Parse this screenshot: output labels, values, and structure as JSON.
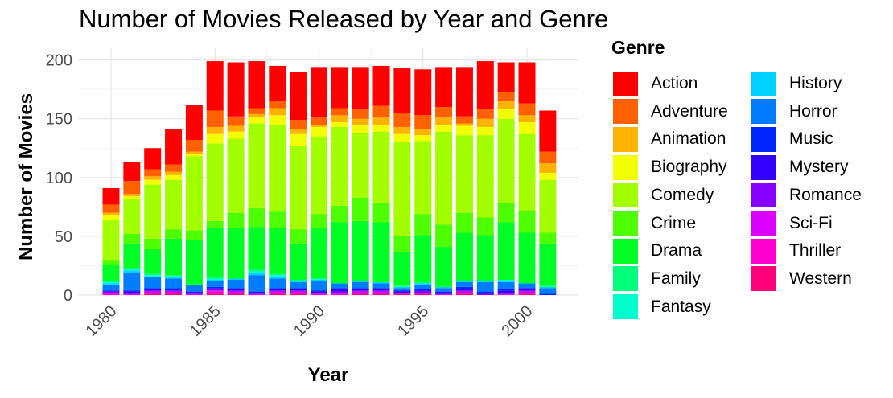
{
  "chart_data": {
    "type": "bar",
    "stacked": true,
    "title": "Number of Movies Released by Year and Genre",
    "xlabel": "Year",
    "ylabel": "Number of Movies",
    "legend_title": "Genre",
    "legend_position": "right",
    "grid": true,
    "ylim": [
      0,
      205
    ],
    "yticks": [
      0,
      50,
      100,
      150,
      200
    ],
    "xticks": [
      1980,
      1985,
      1990,
      1995,
      2000
    ],
    "categories": [
      1980,
      1981,
      1982,
      1983,
      1984,
      1985,
      1986,
      1987,
      1988,
      1989,
      1990,
      1991,
      1992,
      1993,
      1994,
      1995,
      1996,
      1997,
      1998,
      1999,
      2000,
      2001
    ],
    "series": [
      {
        "name": "Action",
        "color": "#FF0000",
        "values": [
          14,
          16,
          18,
          30,
          30,
          42,
          46,
          40,
          30,
          41,
          43,
          35,
          36,
          34,
          38,
          39,
          34,
          42,
          41,
          25,
          35,
          35
        ]
      },
      {
        "name": "Adventure",
        "color": "#FF6100",
        "values": [
          7,
          11,
          6,
          6,
          10,
          14,
          8,
          5,
          6,
          8,
          6,
          6,
          8,
          10,
          12,
          12,
          9,
          6,
          8,
          8,
          10,
          10
        ]
      },
      {
        "name": "Animation",
        "color": "#FFB300",
        "values": [
          2,
          2,
          3,
          3,
          2,
          6,
          5,
          3,
          6,
          4,
          2,
          6,
          5,
          6,
          6,
          5,
          6,
          2,
          7,
          7,
          6,
          8
        ]
      },
      {
        "name": "Biography",
        "color": "#F2FF00",
        "values": [
          4,
          2,
          4,
          4,
          2,
          8,
          6,
          5,
          8,
          10,
          8,
          4,
          7,
          6,
          7,
          5,
          6,
          8,
          7,
          8,
          10,
          6
        ]
      },
      {
        "name": "Comedy",
        "color": "#A3FF00",
        "values": [
          34,
          30,
          46,
          42,
          63,
          66,
          63,
          72,
          74,
          71,
          66,
          67,
          55,
          61,
          80,
          62,
          79,
          66,
          70,
          72,
          65,
          45
        ]
      },
      {
        "name": "Crime",
        "color": "#4DFF00",
        "values": [
          4,
          8,
          9,
          8,
          8,
          6,
          13,
          16,
          14,
          12,
          12,
          14,
          20,
          16,
          13,
          18,
          19,
          17,
          15,
          16,
          19,
          9
        ]
      },
      {
        "name": "Drama",
        "color": "#00FF24",
        "values": [
          14,
          21,
          21,
          31,
          38,
          42,
          43,
          36,
          39,
          31,
          43,
          52,
          51,
          51,
          29,
          40,
          34,
          41,
          39,
          49,
          43,
          36
        ]
      },
      {
        "name": "Family",
        "color": "#00FF7A",
        "values": [
          1,
          1,
          1,
          1,
          0,
          1,
          0,
          2,
          1,
          1,
          0,
          0,
          0,
          0,
          1,
          1,
          0,
          0,
          0,
          0,
          0,
          1
        ]
      },
      {
        "name": "Fantasy",
        "color": "#00FFCF",
        "values": [
          1,
          1,
          1,
          1,
          0,
          1,
          0,
          1,
          1,
          0,
          1,
          0,
          0,
          0,
          0,
          0,
          0,
          0,
          0,
          1,
          0,
          0
        ]
      },
      {
        "name": "History",
        "color": "#00D1FF",
        "values": [
          1,
          2,
          1,
          1,
          0,
          1,
          1,
          2,
          2,
          1,
          1,
          0,
          1,
          1,
          1,
          1,
          1,
          1,
          1,
          1,
          0,
          1
        ]
      },
      {
        "name": "Horror",
        "color": "#007DFF",
        "values": [
          5,
          15,
          9,
          8,
          6,
          5,
          7,
          14,
          8,
          5,
          8,
          4,
          5,
          4,
          2,
          4,
          3,
          4,
          8,
          6,
          4,
          5
        ]
      },
      {
        "name": "Music",
        "color": "#0027FF",
        "values": [
          1,
          1,
          1,
          2,
          1,
          1,
          1,
          1,
          1,
          1,
          1,
          1,
          1,
          1,
          1,
          1,
          1,
          2,
          1,
          1,
          1,
          1
        ]
      },
      {
        "name": "Mystery",
        "color": "#3300FF",
        "values": [
          0,
          1,
          1,
          0,
          0,
          1,
          1,
          0,
          1,
          1,
          1,
          2,
          1,
          1,
          1,
          1,
          1,
          1,
          1,
          2,
          1,
          0
        ]
      },
      {
        "name": "Romance",
        "color": "#8700FF",
        "values": [
          1,
          1,
          1,
          1,
          1,
          1,
          1,
          1,
          1,
          1,
          0,
          1,
          1,
          1,
          0,
          1,
          0,
          1,
          1,
          1,
          1,
          0
        ]
      },
      {
        "name": "Sci-Fi",
        "color": "#DB00FF",
        "values": [
          1,
          1,
          1,
          1,
          1,
          1,
          1,
          1,
          1,
          1,
          1,
          1,
          1,
          1,
          1,
          1,
          1,
          1,
          0,
          1,
          1,
          0
        ]
      },
      {
        "name": "Thriller",
        "color": "#FF00CF",
        "values": [
          1,
          0,
          1,
          1,
          0,
          2,
          1,
          0,
          1,
          1,
          1,
          1,
          1,
          1,
          0,
          0,
          0,
          1,
          0,
          0,
          1,
          0
        ]
      },
      {
        "name": "Western",
        "color": "#FF007A",
        "values": [
          0,
          0,
          1,
          1,
          0,
          1,
          1,
          0,
          1,
          1,
          0,
          0,
          1,
          1,
          1,
          1,
          0,
          1,
          0,
          0,
          1,
          0
        ]
      }
    ]
  }
}
